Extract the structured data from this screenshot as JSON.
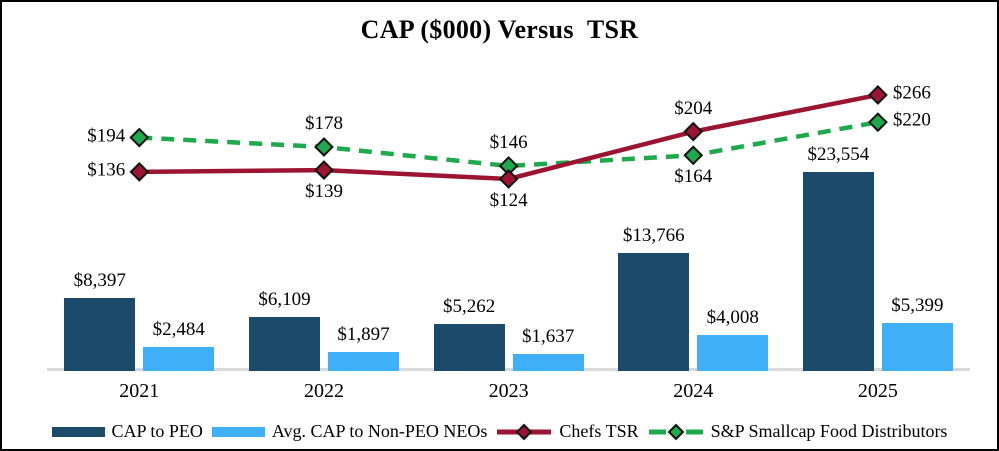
{
  "title": "CAP ($000) Versus  TSR",
  "chart_data": {
    "type": "combo-bar-line",
    "categories": [
      "2021",
      "2022",
      "2023",
      "2024",
      "2025"
    ],
    "bar_series": [
      {
        "name": "CAP to PEO",
        "color": "#1B4A6B",
        "values": [
          8397,
          6109,
          5262,
          13766,
          23554
        ],
        "value_prefix": "$"
      },
      {
        "name": "Avg. CAP to Non-PEO NEOs",
        "color": "#3FB0F7",
        "values": [
          2484,
          1897,
          1637,
          4008,
          5399
        ],
        "value_prefix": "$"
      }
    ],
    "line_series": [
      {
        "name": "Chefs TSR",
        "color": "#9B1432",
        "style": "solid",
        "marker": "diamond",
        "values": [
          136,
          139,
          124,
          204,
          266
        ],
        "value_prefix": "$",
        "label_placement": [
          "left",
          "below",
          "below",
          "above",
          "right"
        ]
      },
      {
        "name": "S&P Smallcap Food Distributors",
        "color": "#1FA84D",
        "style": "dashed",
        "marker": "diamond",
        "values": [
          194,
          178,
          146,
          164,
          220
        ],
        "value_prefix": "$",
        "label_placement": [
          "left",
          "above",
          "above",
          "below",
          "right"
        ]
      }
    ],
    "axes": {
      "x_tick_labels": [
        "2021",
        "2022",
        "2023",
        "2024",
        "2025"
      ],
      "y_axis_visible": false,
      "baseline_color": "#D9D9D9",
      "gridlines": false
    },
    "legend_position": "bottom",
    "marker_outline_color": "#111111",
    "label_color": "#000000"
  }
}
